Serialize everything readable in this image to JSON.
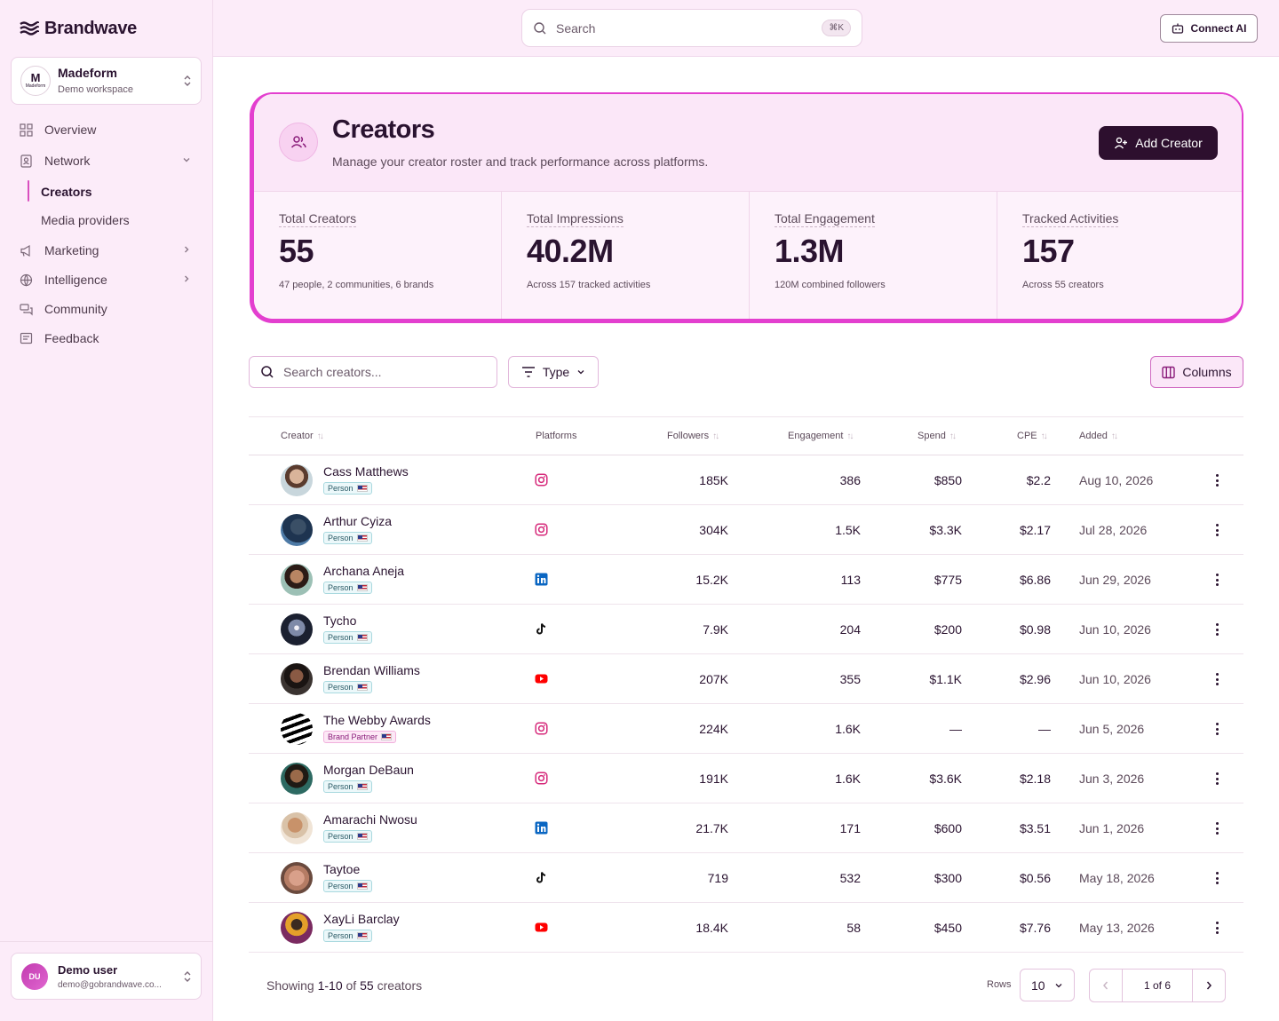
{
  "brand": {
    "name": "Brandwave"
  },
  "workspace": {
    "name": "Madeform",
    "subtitle": "Demo workspace",
    "logo_mark": "M",
    "logo_sub": "Madeform"
  },
  "nav": {
    "overview": "Overview",
    "network": "Network",
    "creators": "Creators",
    "media_providers": "Media providers",
    "marketing": "Marketing",
    "intelligence": "Intelligence",
    "community": "Community",
    "feedback": "Feedback"
  },
  "user": {
    "initials": "DU",
    "name": "Demo user",
    "email": "demo@gobrandwave.co..."
  },
  "topbar": {
    "search_placeholder": "Search",
    "shortcut": "⌘K",
    "connect_label": "Connect AI"
  },
  "page": {
    "title": "Creators",
    "subtitle": "Manage your creator roster and track performance across platforms.",
    "add_label": "Add Creator"
  },
  "stats": [
    {
      "label": "Total Creators",
      "value": "55",
      "desc": "47 people, 2 communities, 6 brands"
    },
    {
      "label": "Total Impressions",
      "value": "40.2M",
      "desc": "Across 157 tracked activities"
    },
    {
      "label": "Total Engagement",
      "value": "1.3M",
      "desc": "120M combined followers"
    },
    {
      "label": "Tracked Activities",
      "value": "157",
      "desc": "Across 55 creators"
    }
  ],
  "filters": {
    "search_placeholder": "Search creators...",
    "type_label": "Type",
    "columns_label": "Columns"
  },
  "table": {
    "headers": {
      "creator": "Creator",
      "platforms": "Platforms",
      "followers": "Followers",
      "engagement": "Engagement",
      "spend": "Spend",
      "cpe": "CPE",
      "added": "Added"
    },
    "rows": [
      {
        "name": "Cass Matthews",
        "type": "Person",
        "platform": "instagram",
        "followers": "185K",
        "engagement": "386",
        "spend": "$850",
        "cpe": "$2.2",
        "added": "Aug 10, 2026"
      },
      {
        "name": "Arthur Cyiza",
        "type": "Person",
        "platform": "instagram",
        "followers": "304K",
        "engagement": "1.5K",
        "spend": "$3.3K",
        "cpe": "$2.17",
        "added": "Jul 28, 2026"
      },
      {
        "name": "Archana Aneja",
        "type": "Person",
        "platform": "linkedin",
        "followers": "15.2K",
        "engagement": "113",
        "spend": "$775",
        "cpe": "$6.86",
        "added": "Jun 29, 2026"
      },
      {
        "name": "Tycho",
        "type": "Person",
        "platform": "tiktok",
        "followers": "7.9K",
        "engagement": "204",
        "spend": "$200",
        "cpe": "$0.98",
        "added": "Jun 10, 2026"
      },
      {
        "name": "Brendan Williams",
        "type": "Person",
        "platform": "youtube",
        "followers": "207K",
        "engagement": "355",
        "spend": "$1.1K",
        "cpe": "$2.96",
        "added": "Jun 10, 2026"
      },
      {
        "name": "The Webby Awards",
        "type": "Brand Partner",
        "platform": "instagram",
        "followers": "224K",
        "engagement": "1.6K",
        "spend": "—",
        "cpe": "—",
        "added": "Jun 5, 2026"
      },
      {
        "name": "Morgan DeBaun",
        "type": "Person",
        "platform": "instagram",
        "followers": "191K",
        "engagement": "1.6K",
        "spend": "$3.6K",
        "cpe": "$2.18",
        "added": "Jun 3, 2026"
      },
      {
        "name": "Amarachi Nwosu",
        "type": "Person",
        "platform": "linkedin",
        "followers": "21.7K",
        "engagement": "171",
        "spend": "$600",
        "cpe": "$3.51",
        "added": "Jun 1, 2026"
      },
      {
        "name": "Taytoe",
        "type": "Person",
        "platform": "tiktok",
        "followers": "719",
        "engagement": "532",
        "spend": "$300",
        "cpe": "$0.56",
        "added": "May 18, 2026"
      },
      {
        "name": "XayLi Barclay",
        "type": "Person",
        "platform": "youtube",
        "followers": "18.4K",
        "engagement": "58",
        "spend": "$450",
        "cpe": "$7.76",
        "added": "May 13, 2026"
      }
    ]
  },
  "footer": {
    "showing": "Showing",
    "range": "1-10",
    "of": "of",
    "total": "55",
    "suffix": "creators",
    "rows_label": "Rows",
    "rows_value": "10",
    "page_indicator": "1 of 6"
  },
  "colors": {
    "accent": "#e33fcf",
    "dark_button": "#2d0f2e",
    "sidebar_bg": "#fcecf9"
  }
}
